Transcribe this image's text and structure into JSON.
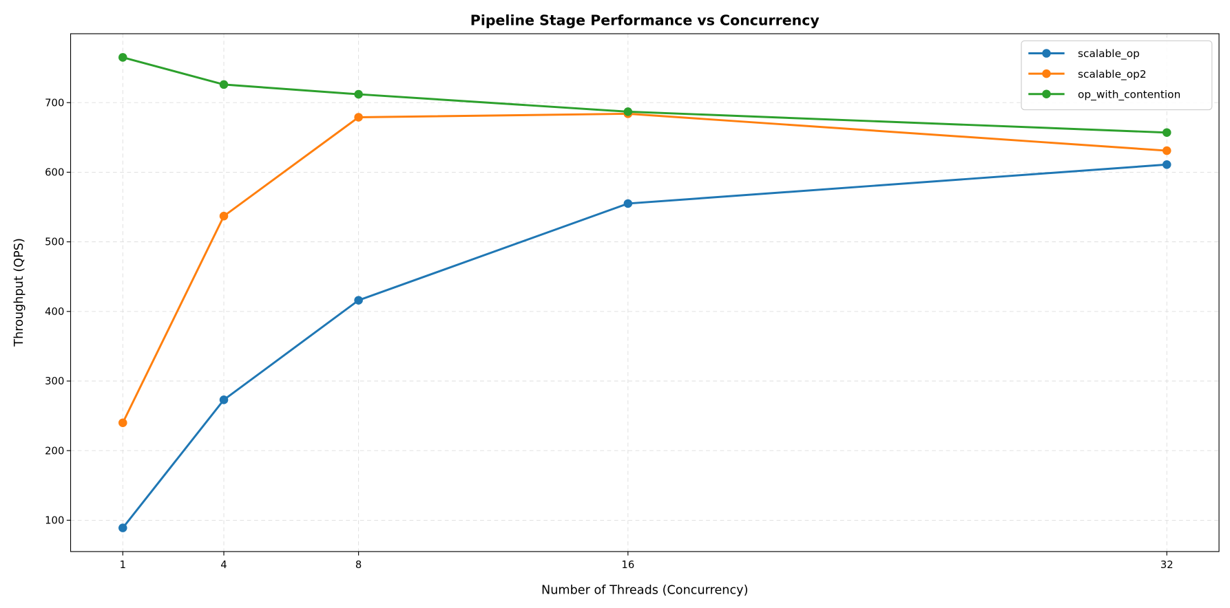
{
  "chart_data": {
    "type": "line",
    "title": "Pipeline Stage Performance vs Concurrency",
    "xlabel": "Number of Threads (Concurrency)",
    "ylabel": "Throughput (QPS)",
    "x": [
      1,
      4,
      8,
      16,
      32
    ],
    "xticks": [
      "1",
      "4",
      "8",
      "16",
      "32"
    ],
    "yticks": [
      "100",
      "200",
      "300",
      "400",
      "500",
      "600",
      "700"
    ],
    "xlim": [
      -0.55,
      33.55
    ],
    "ylim": [
      55,
      799
    ],
    "grid": true,
    "legend_position": "top-right",
    "series": [
      {
        "name": "scalable_op",
        "color": "#1f77b4",
        "values": [
          89,
          273,
          416,
          555,
          611
        ]
      },
      {
        "name": "scalable_op2",
        "color": "#ff7f0e",
        "values": [
          240,
          537,
          679,
          684,
          631
        ]
      },
      {
        "name": "op_with_contention",
        "color": "#2ca02c",
        "values": [
          765,
          726,
          712,
          687,
          657
        ]
      }
    ]
  }
}
